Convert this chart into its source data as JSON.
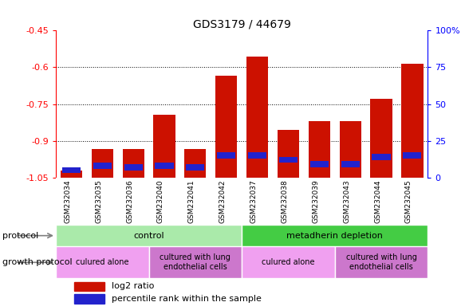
{
  "title": "GDS3179 / 44679",
  "samples": [
    "GSM232034",
    "GSM232035",
    "GSM232036",
    "GSM232040",
    "GSM232041",
    "GSM232042",
    "GSM232037",
    "GSM232038",
    "GSM232039",
    "GSM232043",
    "GSM232044",
    "GSM232045"
  ],
  "log2_ratio": [
    -1.02,
    -0.935,
    -0.935,
    -0.795,
    -0.935,
    -0.635,
    -0.555,
    -0.855,
    -0.82,
    -0.82,
    -0.73,
    -0.585
  ],
  "percentile_rank": [
    5,
    8,
    7,
    8,
    7,
    15,
    15,
    12,
    9,
    9,
    14,
    15
  ],
  "ylim_left": [
    -1.05,
    -0.45
  ],
  "ylim_right": [
    0,
    100
  ],
  "yticks_left": [
    -1.05,
    -0.9,
    -0.75,
    -0.6,
    -0.45
  ],
  "yticks_right": [
    0,
    25,
    50,
    75,
    100
  ],
  "ytick_labels_right": [
    "0",
    "25",
    "50",
    "75",
    "100%"
  ],
  "bar_color": "#cc1100",
  "blue_color": "#2222cc",
  "bg_color": "#ffffff",
  "xlabels_bg": "#c8c8c8",
  "protocol_groups": [
    {
      "label": "control",
      "start": 0,
      "end": 5,
      "color": "#aaeaaa"
    },
    {
      "label": "metadherin depletion",
      "start": 6,
      "end": 11,
      "color": "#44cc44"
    }
  ],
  "growth_groups": [
    {
      "label": "culured alone",
      "start": 0,
      "end": 2,
      "color": "#f0a0f0"
    },
    {
      "label": "cultured with lung\nendothelial cells",
      "start": 3,
      "end": 5,
      "color": "#cc77cc"
    },
    {
      "label": "culured alone",
      "start": 6,
      "end": 8,
      "color": "#f0a0f0"
    },
    {
      "label": "cultured with lung\nendothelial cells",
      "start": 9,
      "end": 11,
      "color": "#cc77cc"
    }
  ],
  "protocol_label": "protocol",
  "growth_protocol_label": "growth protocol",
  "legend_log2": "log2 ratio",
  "legend_pct": "percentile rank within the sample"
}
